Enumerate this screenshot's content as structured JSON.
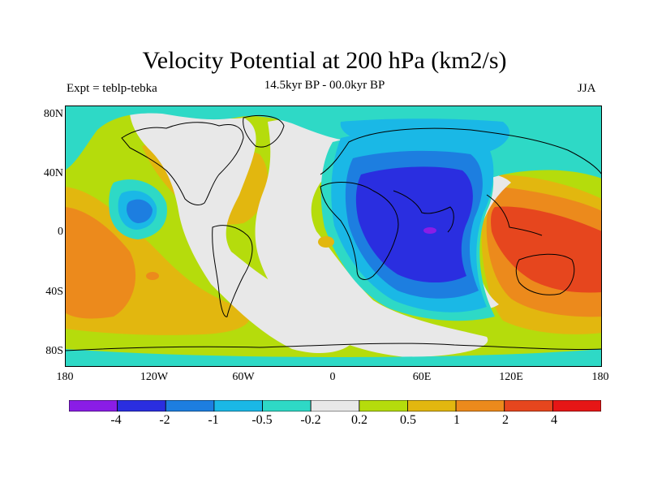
{
  "header": {
    "title": "Velocity Potential at 200 hPa (km2/s)",
    "subtitle": "14.5kyr BP - 00.0kyr BP",
    "left_label": "Expt = teblp-tebka",
    "right_label": "JJA"
  },
  "axes": {
    "lat_labels": [
      "80N",
      "40N",
      "0",
      "40S",
      "80S"
    ],
    "lon_labels": [
      "180",
      "120W",
      "60W",
      "0",
      "60E",
      "120E",
      "180"
    ]
  },
  "colorbar": {
    "colors": [
      "#8a1de6",
      "#2a2ee0",
      "#1d7ee0",
      "#1ab8e6",
      "#2ed9c6",
      "#e8e8e8",
      "#b5dc0c",
      "#e2b70f",
      "#ec8a1c",
      "#e6461e",
      "#e61616"
    ],
    "levels": [
      "-4",
      "-2",
      "-1",
      "-0.5",
      "-0.2",
      "0.2",
      "0.5",
      "1",
      "2",
      "4"
    ]
  }
}
